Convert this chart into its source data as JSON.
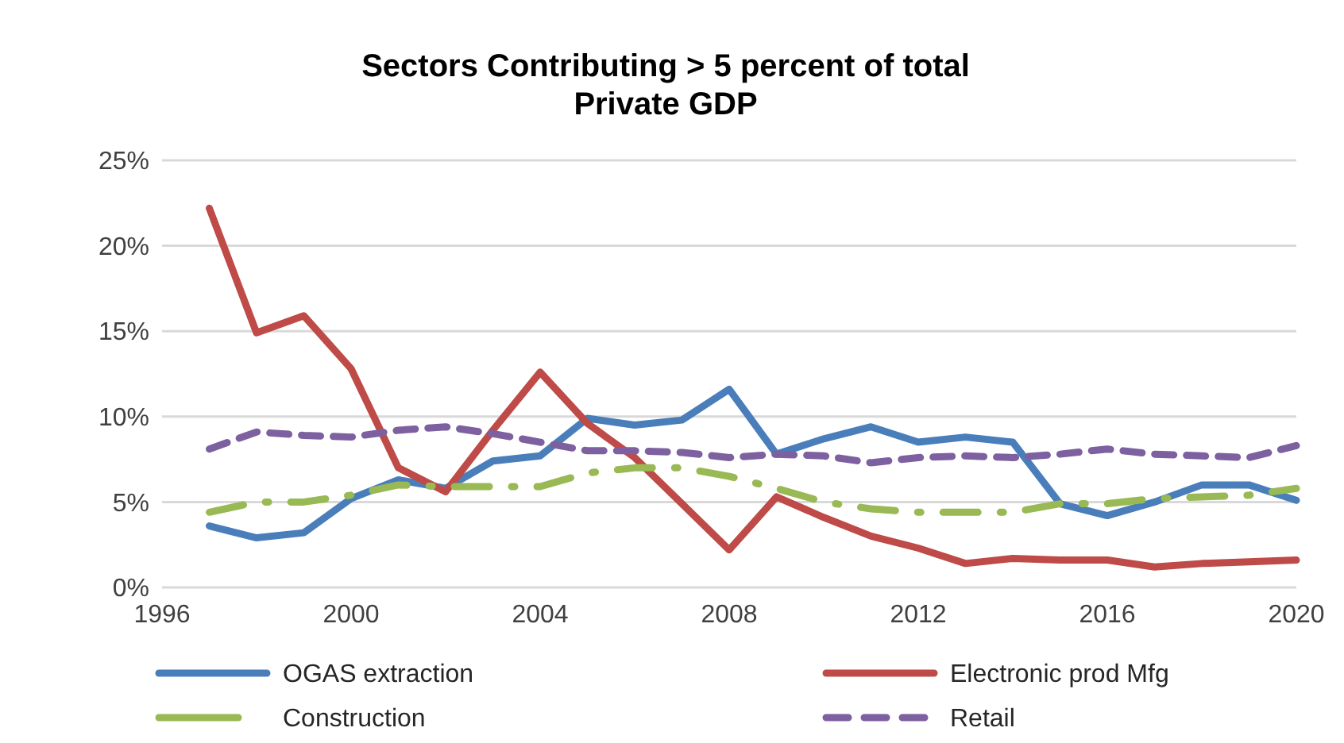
{
  "chart_data": {
    "type": "line",
    "title": "Sectors Contributing > 5 percent of total Private GDP",
    "x": [
      1997,
      1998,
      1999,
      2000,
      2001,
      2002,
      2003,
      2004,
      2005,
      2006,
      2007,
      2008,
      2009,
      2010,
      2011,
      2012,
      2013,
      2014,
      2015,
      2016,
      2017,
      2018,
      2019,
      2020
    ],
    "series": [
      {
        "name": "OGAS extraction",
        "color": "#4a7ebb",
        "line_style": "solid",
        "values": [
          3.6,
          2.9,
          3.2,
          5.2,
          6.3,
          5.8,
          7.4,
          7.7,
          9.9,
          9.5,
          9.8,
          11.6,
          7.8,
          8.7,
          9.4,
          8.5,
          8.8,
          8.5,
          4.9,
          4.2,
          5.0,
          6.0,
          6.0,
          5.1
        ]
      },
      {
        "name": "Electronic prod Mfg",
        "color": "#be4b48",
        "line_style": "solid",
        "values": [
          22.2,
          14.9,
          15.9,
          12.8,
          7.0,
          5.6,
          9.2,
          12.6,
          9.6,
          7.6,
          4.9,
          2.2,
          5.3,
          4.1,
          3.0,
          2.3,
          1.4,
          1.7,
          1.6,
          1.6,
          1.2,
          1.4,
          1.5,
          1.6
        ]
      },
      {
        "name": "Construction",
        "color": "#98b954",
        "line_style": "dashed",
        "values": [
          4.4,
          5.0,
          5.0,
          5.4,
          6.0,
          5.9,
          5.9,
          5.9,
          6.7,
          7.0,
          7.0,
          6.5,
          5.8,
          5.0,
          4.6,
          4.4,
          4.4,
          4.4,
          4.9,
          4.9,
          5.2,
          5.3,
          5.4,
          5.8
        ]
      },
      {
        "name": "Retail",
        "color": "#7d60a0",
        "line_style": "dashed",
        "values": [
          8.1,
          9.1,
          8.9,
          8.8,
          9.2,
          9.4,
          9.0,
          8.5,
          8.0,
          8.0,
          7.9,
          7.6,
          7.8,
          7.7,
          7.3,
          7.6,
          7.7,
          7.6,
          7.8,
          8.1,
          7.8,
          7.7,
          7.6,
          8.3
        ]
      }
    ],
    "xlim": [
      1996,
      2020
    ],
    "xticks": [
      1996,
      2000,
      2004,
      2008,
      2012,
      2016,
      2020
    ],
    "ylim": [
      0,
      25
    ],
    "yticks": [
      {
        "value": 0,
        "label": "0%"
      },
      {
        "value": 5,
        "label": "5%"
      },
      {
        "value": 10,
        "label": "10%"
      },
      {
        "value": 15,
        "label": "15%"
      },
      {
        "value": 20,
        "label": "20%"
      },
      {
        "value": 25,
        "label": "25%"
      }
    ],
    "grid": "y",
    "legend": "bottom"
  }
}
